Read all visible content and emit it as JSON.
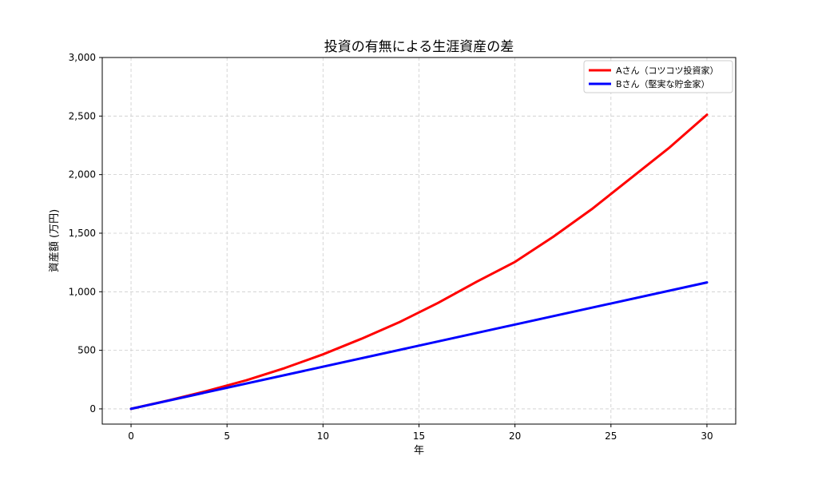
{
  "chart_data": {
    "type": "line",
    "title": "投資の有無による生涯資産の差",
    "xlabel": "年",
    "ylabel": "資産額 (万円)",
    "xlim": [
      -1.5,
      31.5
    ],
    "ylim": [
      -130,
      3000
    ],
    "xticks": [
      0,
      5,
      10,
      15,
      20,
      25,
      30
    ],
    "xtick_labels": [
      "0",
      "5",
      "10",
      "15",
      "20",
      "25",
      "30"
    ],
    "yticks": [
      0,
      500,
      1000,
      1500,
      2000,
      2500,
      3000
    ],
    "ytick_labels": [
      "0",
      "500",
      "1,000",
      "1,500",
      "2,000",
      "2,500",
      "3,000"
    ],
    "grid": true,
    "legend_position": "top-right",
    "series": [
      {
        "name": "Aさん（コツコツ投資家）",
        "color": "#ff0000",
        "x": [
          0,
          2,
          4,
          6,
          8,
          10,
          12,
          14,
          16,
          18,
          20,
          22,
          24,
          26,
          28,
          30
        ],
        "y": [
          0,
          74,
          155,
          244,
          348,
          465,
          598,
          742,
          905,
          1085,
          1255,
          1470,
          1705,
          1965,
          2225,
          2512
        ]
      },
      {
        "name": "Bさん（堅実な貯金家）",
        "color": "#0000ff",
        "x": [
          0,
          30
        ],
        "y": [
          0,
          1080
        ]
      }
    ]
  }
}
